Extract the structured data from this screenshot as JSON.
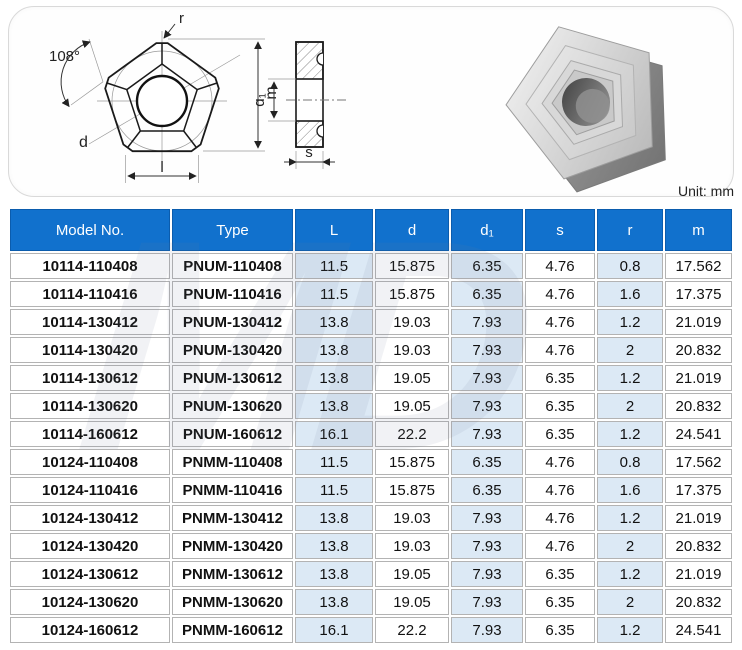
{
  "unit_label": "Unit: mm",
  "watermark": "MD",
  "diagram": {
    "labels": {
      "r": "r",
      "angle": "108°",
      "d": "d",
      "m": "m",
      "l": "l",
      "d1": "d₁",
      "s": "s"
    }
  },
  "colors": {
    "header_bg": "#1171cd",
    "header_border": "#0b5cad",
    "shaded_cell": "#dce9f5",
    "cell_border": "#b3b3b3"
  },
  "table": {
    "headers": [
      "Model No.",
      "Type",
      "L",
      "d",
      "d₁",
      "s",
      "r",
      "m"
    ],
    "rows": [
      [
        "10114-110408",
        "PNUM-110408",
        "11.5",
        "15.875",
        "6.35",
        "4.76",
        "0.8",
        "17.562"
      ],
      [
        "10114-110416",
        "PNUM-110416",
        "11.5",
        "15.875",
        "6.35",
        "4.76",
        "1.6",
        "17.375"
      ],
      [
        "10114-130412",
        "PNUM-130412",
        "13.8",
        "19.03",
        "7.93",
        "4.76",
        "1.2",
        "21.019"
      ],
      [
        "10114-130420",
        "PNUM-130420",
        "13.8",
        "19.03",
        "7.93",
        "4.76",
        "2",
        "20.832"
      ],
      [
        "10114-130612",
        "PNUM-130612",
        "13.8",
        "19.05",
        "7.93",
        "6.35",
        "1.2",
        "21.019"
      ],
      [
        "10114-130620",
        "PNUM-130620",
        "13.8",
        "19.05",
        "7.93",
        "6.35",
        "2",
        "20.832"
      ],
      [
        "10114-160612",
        "PNUM-160612",
        "16.1",
        "22.2",
        "7.93",
        "6.35",
        "1.2",
        "24.541"
      ],
      [
        "10124-110408",
        "PNMM-110408",
        "11.5",
        "15.875",
        "6.35",
        "4.76",
        "0.8",
        "17.562"
      ],
      [
        "10124-110416",
        "PNMM-110416",
        "11.5",
        "15.875",
        "6.35",
        "4.76",
        "1.6",
        "17.375"
      ],
      [
        "10124-130412",
        "PNMM-130412",
        "13.8",
        "19.03",
        "7.93",
        "4.76",
        "1.2",
        "21.019"
      ],
      [
        "10124-130420",
        "PNMM-130420",
        "13.8",
        "19.03",
        "7.93",
        "4.76",
        "2",
        "20.832"
      ],
      [
        "10124-130612",
        "PNMM-130612",
        "13.8",
        "19.05",
        "7.93",
        "6.35",
        "1.2",
        "21.019"
      ],
      [
        "10124-130620",
        "PNMM-130620",
        "13.8",
        "19.05",
        "7.93",
        "6.35",
        "2",
        "20.832"
      ],
      [
        "10124-160612",
        "PNMM-160612",
        "16.1",
        "22.2",
        "7.93",
        "6.35",
        "1.2",
        "24.541"
      ]
    ]
  }
}
